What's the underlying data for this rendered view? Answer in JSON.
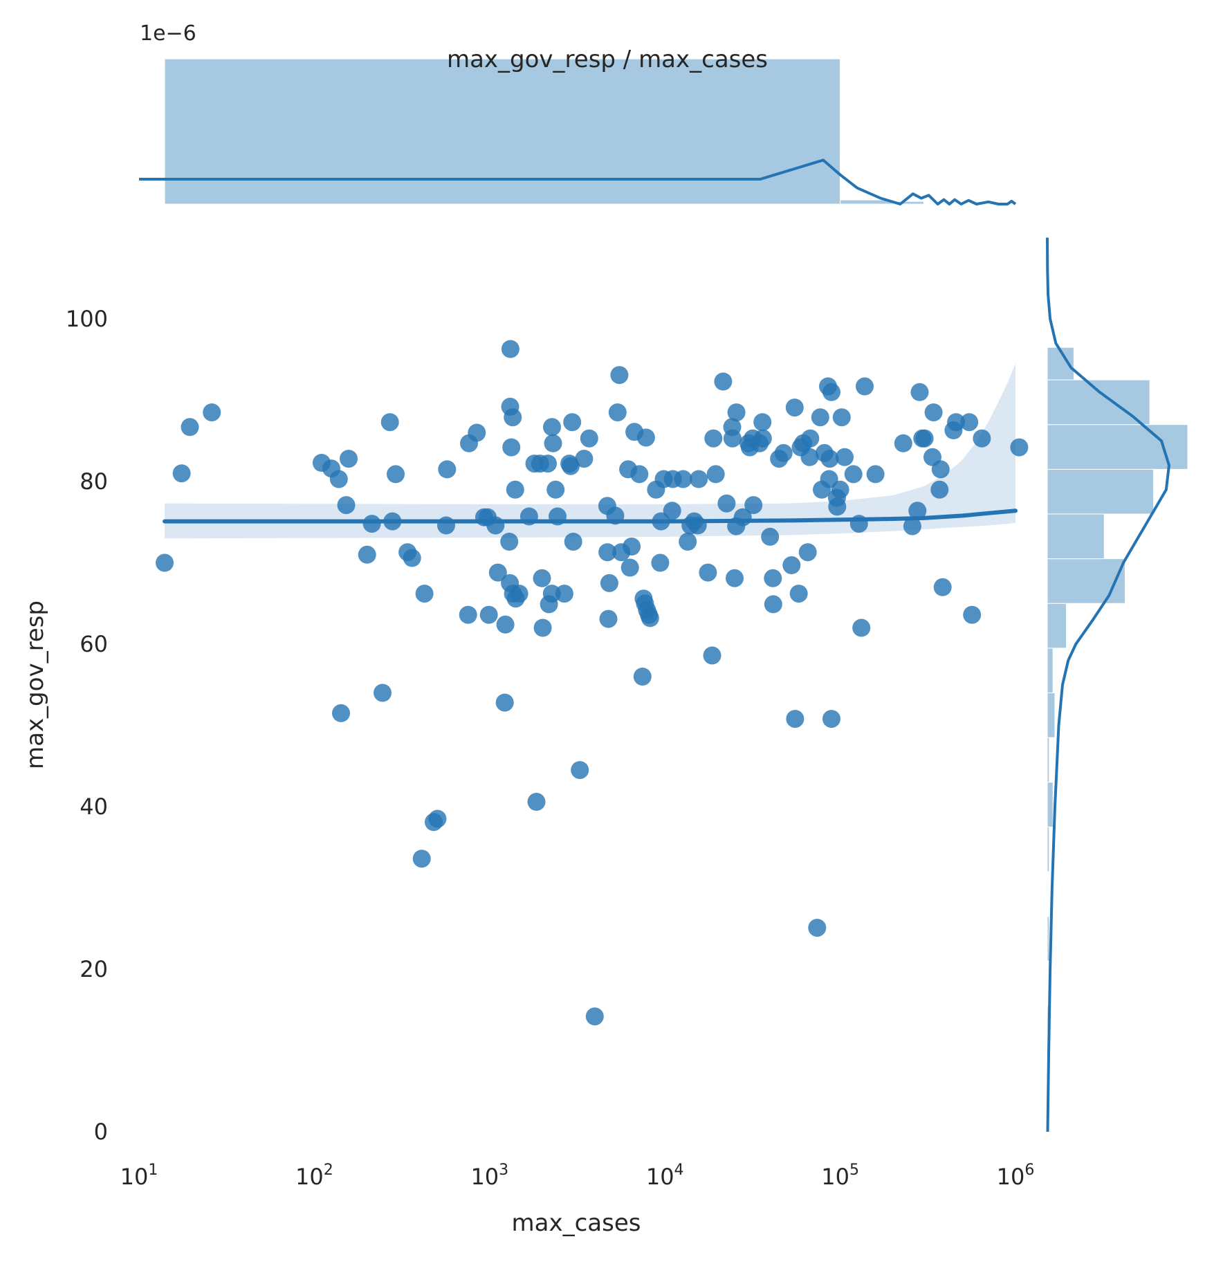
{
  "chart_data": {
    "type": "scatter",
    "title": "max_gov_resp / max_cases",
    "xlabel": "max_cases",
    "ylabel": "max_gov_resp",
    "xscale": "log",
    "xlim": [
      10,
      1000000
    ],
    "ylim": [
      0,
      110
    ],
    "x_ticks": [
      {
        "value": 10,
        "base": "10",
        "exp": "1"
      },
      {
        "value": 100,
        "base": "10",
        "exp": "2"
      },
      {
        "value": 1000,
        "base": "10",
        "exp": "3"
      },
      {
        "value": 10000,
        "base": "10",
        "exp": "4"
      },
      {
        "value": 100000,
        "base": "10",
        "exp": "5"
      },
      {
        "value": 1000000,
        "base": "10",
        "exp": "6"
      }
    ],
    "y_ticks": [
      {
        "value": 0,
        "label": "0"
      },
      {
        "value": 20,
        "label": "20"
      },
      {
        "value": 40,
        "label": "40"
      },
      {
        "value": 60,
        "label": "60"
      },
      {
        "value": 80,
        "label": "80"
      },
      {
        "value": 100,
        "label": "100"
      }
    ],
    "grid": false,
    "color": "#2474b4",
    "points": [
      [
        14,
        70
      ],
      [
        17.5,
        81
      ],
      [
        19.5,
        86.7
      ],
      [
        26,
        88.5
      ],
      [
        110,
        82.3
      ],
      [
        125,
        81.6
      ],
      [
        138,
        80.3
      ],
      [
        142,
        51.5
      ],
      [
        152,
        77.1
      ],
      [
        157,
        82.8
      ],
      [
        200,
        71
      ],
      [
        213,
        74.8
      ],
      [
        245,
        54
      ],
      [
        270,
        87.3
      ],
      [
        279,
        75.1
      ],
      [
        291,
        80.9
      ],
      [
        340,
        71.3
      ],
      [
        361,
        70.6
      ],
      [
        410,
        33.6
      ],
      [
        425,
        66.2
      ],
      [
        480,
        38.1
      ],
      [
        504,
        38.5
      ],
      [
        565,
        74.6
      ],
      [
        572,
        81.5
      ],
      [
        754,
        63.6
      ],
      [
        763,
        84.7
      ],
      [
        845,
        86
      ],
      [
        931,
        75.6
      ],
      [
        975,
        75.6
      ],
      [
        990,
        63.6
      ],
      [
        1080,
        74.6
      ],
      [
        1115,
        68.8
      ],
      [
        1220,
        52.8
      ],
      [
        1230,
        62.4
      ],
      [
        1295,
        72.6
      ],
      [
        1305,
        67.5
      ],
      [
        1310,
        89.2
      ],
      [
        1315,
        96.3
      ],
      [
        1330,
        84.2
      ],
      [
        1355,
        87.9
      ],
      [
        1360,
        66.2
      ],
      [
        1400,
        79
      ],
      [
        1410,
        65.6
      ],
      [
        1475,
        66.2
      ],
      [
        1680,
        75.7
      ],
      [
        1800,
        82.2
      ],
      [
        1850,
        40.6
      ],
      [
        1940,
        82.2
      ],
      [
        1990,
        68.1
      ],
      [
        2010,
        62
      ],
      [
        2150,
        82.2
      ],
      [
        2180,
        64.9
      ],
      [
        2265,
        66.2
      ],
      [
        2270,
        86.7
      ],
      [
        2300,
        84.7
      ],
      [
        2380,
        79
      ],
      [
        2440,
        75.7
      ],
      [
        2670,
        66.2
      ],
      [
        2850,
        82.2
      ],
      [
        2900,
        81.9
      ],
      [
        2960,
        87.3
      ],
      [
        3000,
        72.6
      ],
      [
        3270,
        44.5
      ],
      [
        3460,
        82.8
      ],
      [
        3700,
        85.3
      ],
      [
        3980,
        14.2
      ],
      [
        4690,
        77
      ],
      [
        4700,
        71.3
      ],
      [
        4760,
        63.1
      ],
      [
        4820,
        67.5
      ],
      [
        5210,
        75.8
      ],
      [
        5370,
        88.5
      ],
      [
        5500,
        93.1
      ],
      [
        5640,
        71.3
      ],
      [
        6170,
        81.5
      ],
      [
        6320,
        69.4
      ],
      [
        6460,
        72
      ],
      [
        6700,
        86.1
      ],
      [
        7150,
        80.9
      ],
      [
        7450,
        56
      ],
      [
        7560,
        65.6
      ],
      [
        7700,
        65
      ],
      [
        7800,
        85.4
      ],
      [
        7900,
        64.2
      ],
      [
        8100,
        63.6
      ],
      [
        8230,
        63.2
      ],
      [
        8900,
        79
      ],
      [
        9400,
        70
      ],
      [
        9500,
        75.1
      ],
      [
        9850,
        80.3
      ],
      [
        11000,
        76.4
      ],
      [
        11100,
        80.3
      ],
      [
        12700,
        80.3
      ],
      [
        13500,
        72.6
      ],
      [
        14000,
        74.6
      ],
      [
        14700,
        75.1
      ],
      [
        15400,
        74.6
      ],
      [
        15600,
        80.3
      ],
      [
        17600,
        68.8
      ],
      [
        18600,
        58.6
      ],
      [
        18900,
        85.3
      ],
      [
        19500,
        80.9
      ],
      [
        21500,
        92.3
      ],
      [
        22500,
        77.3
      ],
      [
        24200,
        86.7
      ],
      [
        24300,
        85.3
      ],
      [
        25000,
        68.1
      ],
      [
        25500,
        74.5
      ],
      [
        25600,
        88.5
      ],
      [
        27800,
        75.6
      ],
      [
        30000,
        84.7
      ],
      [
        30500,
        84.2
      ],
      [
        31700,
        85.3
      ],
      [
        32000,
        77.1
      ],
      [
        34700,
        84.7
      ],
      [
        36000,
        87.3
      ],
      [
        36200,
        85.3
      ],
      [
        39800,
        73.2
      ],
      [
        41300,
        68.1
      ],
      [
        41500,
        64.9
      ],
      [
        44800,
        82.8
      ],
      [
        47500,
        83.5
      ],
      [
        52800,
        69.7
      ],
      [
        55000,
        89.1
      ],
      [
        55300,
        50.8
      ],
      [
        58000,
        66.2
      ],
      [
        59500,
        84.2
      ],
      [
        61500,
        84.7
      ],
      [
        65300,
        71.3
      ],
      [
        67000,
        83
      ],
      [
        67500,
        85.3
      ],
      [
        73900,
        25.1
      ],
      [
        77000,
        87.9
      ],
      [
        78500,
        79
      ],
      [
        81300,
        83.5
      ],
      [
        85200,
        91.7
      ],
      [
        86500,
        80.3
      ],
      [
        87200,
        82.8
      ],
      [
        89200,
        91
      ],
      [
        89200,
        50.8
      ],
      [
        95800,
        78
      ],
      [
        96200,
        76.9
      ],
      [
        100000,
        79
      ],
      [
        102000,
        87.9
      ],
      [
        106000,
        83
      ],
      [
        119000,
        80.9
      ],
      [
        128000,
        74.8
      ],
      [
        132000,
        62
      ],
      [
        138000,
        91.7
      ],
      [
        159000,
        80.9
      ],
      [
        229000,
        84.7
      ],
      [
        258000,
        74.5
      ],
      [
        276000,
        76.4
      ],
      [
        284000,
        91
      ],
      [
        294000,
        85.3
      ],
      [
        303000,
        85.3
      ],
      [
        336000,
        83
      ],
      [
        341000,
        88.5
      ],
      [
        369000,
        79
      ],
      [
        374000,
        81.5
      ],
      [
        384000,
        67
      ],
      [
        443000,
        86.3
      ],
      [
        458000,
        87.3
      ],
      [
        545000,
        87.3
      ],
      [
        565000,
        63.6
      ],
      [
        643000,
        85.3
      ],
      [
        1050000,
        84.2
      ]
    ],
    "regression_line": {
      "x": [
        14,
        1000,
        10000,
        50000,
        100000,
        200000,
        300000,
        500000,
        700000,
        1000000
      ],
      "y": [
        75.1,
        75.1,
        75.1,
        75.2,
        75.3,
        75.4,
        75.5,
        75.8,
        76.1,
        76.4
      ]
    },
    "confidence_band": {
      "x": [
        14,
        1000,
        10000,
        50000,
        100000,
        200000,
        300000,
        400000,
        500000,
        600000,
        700000,
        800000,
        900000,
        1000000
      ],
      "lower": [
        73,
        73.1,
        73.2,
        73.4,
        73.6,
        73.9,
        74.1,
        74.3,
        74.4,
        74.5,
        74.6,
        74.7,
        74.8,
        74.9
      ],
      "upper": [
        77.3,
        77.2,
        77.2,
        77.3,
        77.6,
        78.3,
        79.4,
        80.9,
        82.7,
        84.9,
        87.3,
        89.8,
        92.1,
        94.5
      ]
    },
    "marginal_x": {
      "scale_label": "1e−6",
      "bins": [
        {
          "x0": 14,
          "x1": 100000,
          "density": 0.99
        },
        {
          "x0": 100000,
          "x1": 200000,
          "density": 0.028
        },
        {
          "x0": 200000,
          "x1": 300000,
          "density": 0.018
        },
        {
          "x0": 300000,
          "x1": 1000000,
          "density": 0.0
        }
      ],
      "kde": {
        "x": [
          10,
          35000,
          80000,
          100000,
          125000,
          170000,
          220000,
          260000,
          290000,
          320000,
          360000,
          390000,
          420000,
          450000,
          490000,
          540000,
          600000,
          700000,
          800000,
          900000,
          950000,
          1000000
        ],
        "y": [
          0.17,
          0.17,
          0.3,
          0.2,
          0.11,
          0.04,
          0.0,
          0.07,
          0.04,
          0.06,
          0.0,
          0.03,
          0.0,
          0.03,
          0.0,
          0.025,
          0.0,
          0.015,
          0.0,
          0.0,
          0.02,
          0.0
        ]
      }
    },
    "marginal_y": {
      "bins": [
        {
          "y0": 10,
          "y1": 15.5,
          "count": 1
        },
        {
          "y0": 15.5,
          "y1": 21,
          "count": 0
        },
        {
          "y0": 21,
          "y1": 26.5,
          "count": 1
        },
        {
          "y0": 26.5,
          "y1": 32,
          "count": 0
        },
        {
          "y0": 32,
          "y1": 37.5,
          "count": 1
        },
        {
          "y0": 37.5,
          "y1": 43,
          "count": 3
        },
        {
          "y0": 43,
          "y1": 48.5,
          "count": 1
        },
        {
          "y0": 48.5,
          "y1": 54,
          "count": 4
        },
        {
          "y0": 54,
          "y1": 59.5,
          "count": 3
        },
        {
          "y0": 59.5,
          "y1": 65,
          "count": 10
        },
        {
          "y0": 65,
          "y1": 70.5,
          "count": 41
        },
        {
          "y0": 70.5,
          "y1": 76,
          "count": 30
        },
        {
          "y0": 76,
          "y1": 81.5,
          "count": 56
        },
        {
          "y0": 81.5,
          "y1": 87,
          "count": 74
        },
        {
          "y0": 87,
          "y1": 92.5,
          "count": 54
        },
        {
          "y0": 92.5,
          "y1": 96.5,
          "count": 14
        }
      ],
      "kde": {
        "y": [
          0,
          10,
          20,
          30,
          40,
          45,
          50,
          55,
          58,
          60,
          63,
          66,
          70,
          73,
          76,
          79,
          82,
          85,
          88,
          91,
          94,
          97,
          100,
          103,
          106,
          110
        ],
        "density": [
          0.0004,
          0.0015,
          0.003,
          0.005,
          0.008,
          0.01,
          0.012,
          0.016,
          0.022,
          0.03,
          0.048,
          0.065,
          0.08,
          0.095,
          0.11,
          0.125,
          0.128,
          0.12,
          0.09,
          0.055,
          0.025,
          0.009,
          0.003,
          0.0008,
          0.0002,
          0.0
        ]
      }
    }
  }
}
